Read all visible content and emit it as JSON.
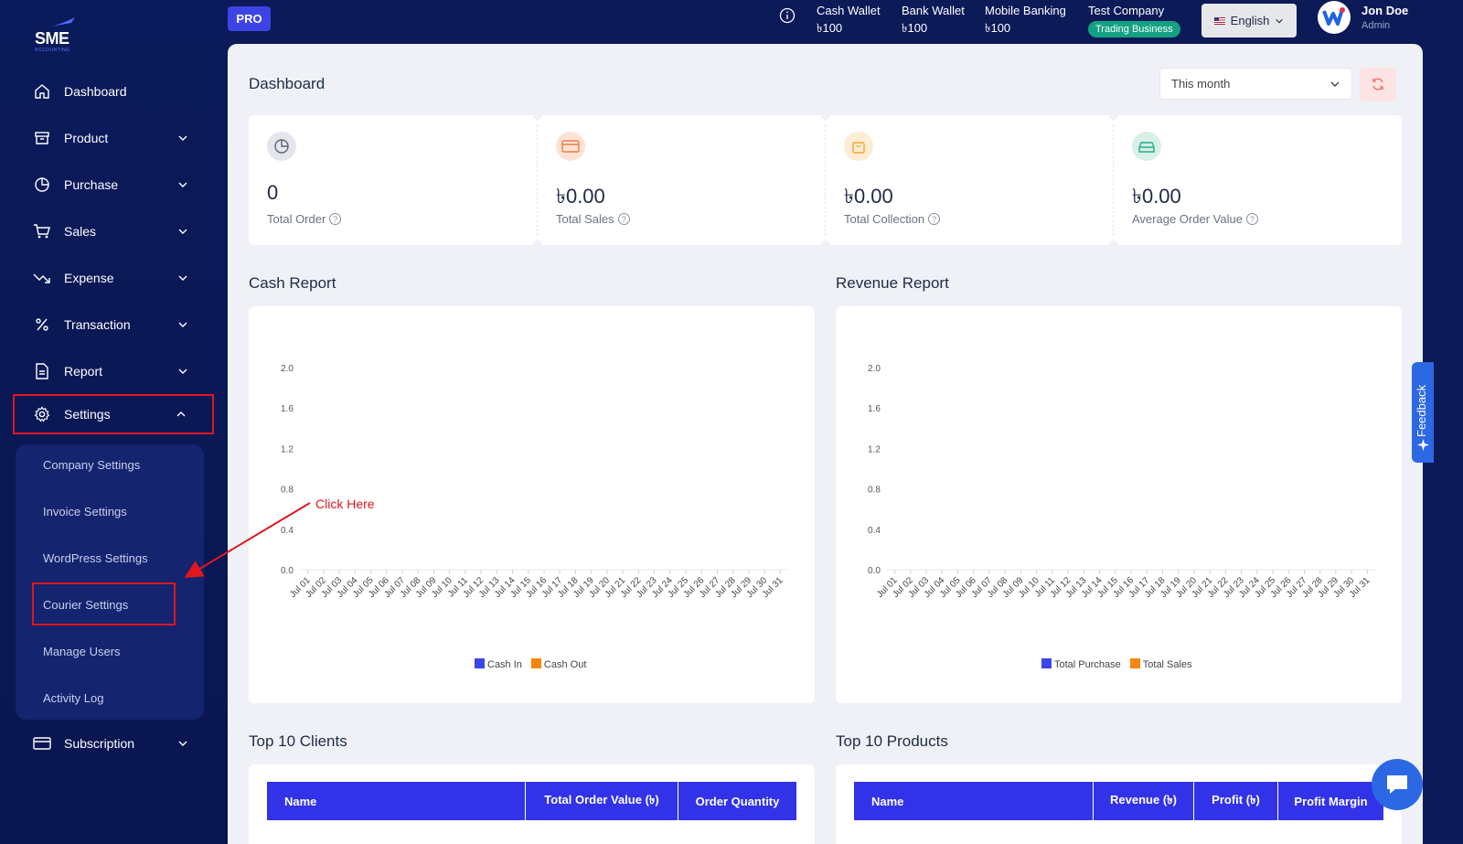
{
  "sidebar": {
    "logo": {
      "text": "SME",
      "sub": "ACCOUNTING"
    },
    "items": [
      {
        "label": "Dashboard"
      },
      {
        "label": "Product"
      },
      {
        "label": "Purchase"
      },
      {
        "label": "Sales"
      },
      {
        "label": "Expense"
      },
      {
        "label": "Transaction"
      },
      {
        "label": "Report"
      },
      {
        "label": "Settings"
      },
      {
        "label": "Subscription"
      }
    ],
    "settings_submenu": [
      {
        "label": "Company Settings"
      },
      {
        "label": "Invoice Settings"
      },
      {
        "label": "WordPress Settings"
      },
      {
        "label": "Courier Settings"
      },
      {
        "label": "Manage Users"
      },
      {
        "label": "Activity Log"
      }
    ]
  },
  "topbar": {
    "pro_badge": "PRO",
    "wallets": [
      {
        "label": "Cash Wallet",
        "amount": "৳100"
      },
      {
        "label": "Bank Wallet",
        "amount": "৳100"
      },
      {
        "label": "Mobile Banking",
        "amount": "৳100"
      }
    ],
    "company": {
      "name": "Test Company",
      "type": "Trading Business"
    },
    "language": "English",
    "user": {
      "name": "Jon Doe",
      "role": "Admin"
    }
  },
  "dashboard": {
    "title": "Dashboard",
    "period": "This month",
    "stats": [
      {
        "value": "0",
        "label": "Total Order",
        "icon": "pie-icon",
        "color": "#5a6478",
        "bg": "#e4e6ec"
      },
      {
        "value": "৳0.00",
        "label": "Total Sales",
        "icon": "card-icon",
        "color": "#f07b44",
        "bg": "#fde3d6"
      },
      {
        "value": "৳0.00",
        "label": "Total Collection",
        "icon": "bag-icon",
        "color": "#f0a43a",
        "bg": "#fdedd2"
      },
      {
        "value": "৳0.00",
        "label": "Average Order Value",
        "icon": "wallet-icon",
        "color": "#2ea88a",
        "bg": "#d7f0e8"
      }
    ],
    "cash_report_title": "Cash Report",
    "revenue_report_title": "Revenue Report",
    "top_clients_title": "Top 10 Clients",
    "top_products_title": "Top 10 Products",
    "clients_headers": [
      "Name",
      "Total Order Value (৳)",
      "Order Quantity"
    ],
    "products_headers": [
      "Name",
      "Revenue (৳)",
      "Profit (৳)",
      "Profit Margin"
    ]
  },
  "annotation": {
    "text": "Click Here"
  },
  "feedback_label": "Feedback",
  "colors": {
    "accent": "#3232e8",
    "highlight": "#e0171f",
    "series_a": "#3b46e8",
    "series_b": "#f5860f"
  },
  "chart_data": [
    {
      "type": "bar",
      "categories": [
        "Jul 01",
        "Jul 02",
        "Jul 03",
        "Jul 04",
        "Jul 05",
        "Jul 06",
        "Jul 07",
        "Jul 08",
        "Jul 09",
        "Jul 10",
        "Jul 11",
        "Jul 12",
        "Jul 13",
        "Jul 14",
        "Jul 15",
        "Jul 16",
        "Jul 17",
        "Jul 18",
        "Jul 19",
        "Jul 20",
        "Jul 21",
        "Jul 22",
        "Jul 23",
        "Jul 24",
        "Jul 25",
        "Jul 26",
        "Jul 27",
        "Jul 28",
        "Jul 29",
        "Jul 30",
        "Jul 31"
      ],
      "series": [
        {
          "name": "Cash In",
          "values": [
            0,
            0,
            0,
            0,
            0,
            0,
            0,
            0,
            0,
            0,
            0,
            0,
            0,
            0,
            0,
            0,
            0,
            0,
            0,
            0,
            0,
            0,
            0,
            0,
            0,
            0,
            0,
            0,
            0,
            0,
            0
          ]
        },
        {
          "name": "Cash Out",
          "values": [
            0,
            0,
            0,
            0,
            0,
            0,
            0,
            0,
            0,
            0,
            0,
            0,
            0,
            0,
            0,
            0,
            0,
            0,
            0,
            0,
            0,
            0,
            0,
            0,
            0,
            0,
            0,
            0,
            0,
            0,
            0
          ]
        }
      ],
      "yticks": [
        "2.0",
        "1.6",
        "1.2",
        "0.8",
        "0.4",
        "0.0"
      ],
      "ylim": [
        0,
        2.0
      ],
      "legend": "bottom"
    },
    {
      "type": "bar",
      "categories": [
        "Jul 01",
        "Jul 02",
        "Jul 03",
        "Jul 04",
        "Jul 05",
        "Jul 06",
        "Jul 07",
        "Jul 08",
        "Jul 09",
        "Jul 10",
        "Jul 11",
        "Jul 12",
        "Jul 13",
        "Jul 14",
        "Jul 15",
        "Jul 16",
        "Jul 17",
        "Jul 18",
        "Jul 19",
        "Jul 20",
        "Jul 21",
        "Jul 22",
        "Jul 23",
        "Jul 24",
        "Jul 25",
        "Jul 26",
        "Jul 27",
        "Jul 28",
        "Jul 29",
        "Jul 30",
        "Jul 31"
      ],
      "series": [
        {
          "name": "Total Purchase",
          "values": [
            0,
            0,
            0,
            0,
            0,
            0,
            0,
            0,
            0,
            0,
            0,
            0,
            0,
            0,
            0,
            0,
            0,
            0,
            0,
            0,
            0,
            0,
            0,
            0,
            0,
            0,
            0,
            0,
            0,
            0,
            0
          ]
        },
        {
          "name": "Total Sales",
          "values": [
            0,
            0,
            0,
            0,
            0,
            0,
            0,
            0,
            0,
            0,
            0,
            0,
            0,
            0,
            0,
            0,
            0,
            0,
            0,
            0,
            0,
            0,
            0,
            0,
            0,
            0,
            0,
            0,
            0,
            0,
            0
          ]
        }
      ],
      "yticks": [
        "2.0",
        "1.6",
        "1.2",
        "0.8",
        "0.4",
        "0.0"
      ],
      "ylim": [
        0,
        2.0
      ],
      "legend": "bottom"
    }
  ]
}
